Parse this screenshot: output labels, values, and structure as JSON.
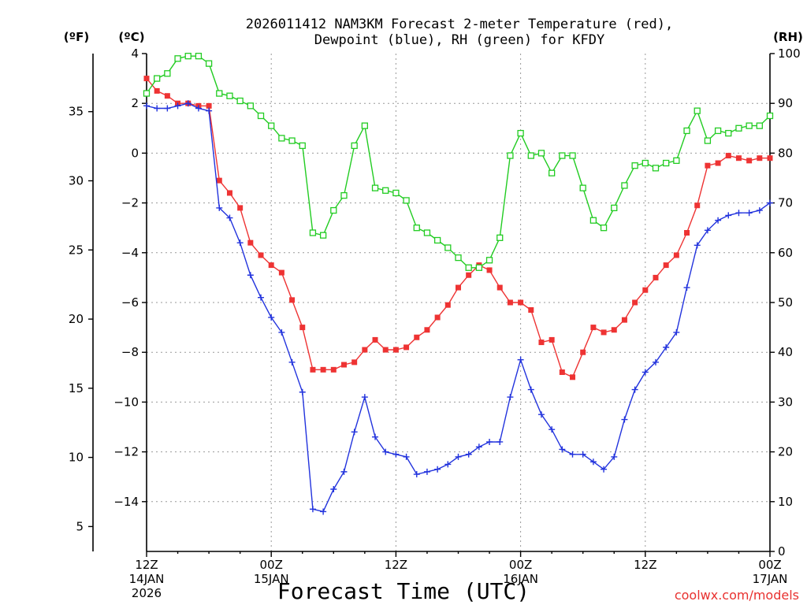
{
  "chart_data": {
    "type": "line",
    "title_line1": "2026011412 NAM3KM Forecast 2-meter Temperature (red),",
    "title_line2": "Dewpoint (blue), RH (green) for KFDY",
    "xlabel": "Forecast Time (UTC)",
    "credit": "coolwx.com/models",
    "units": {
      "fahrenheit": "(ºF)",
      "celsius": "(ºC)",
      "rh": "(RH)"
    },
    "xlim_hours": [
      0,
      60
    ],
    "celsius_lim": [
      -16.0,
      4.0
    ],
    "rh_lim": [
      0,
      100
    ],
    "fahrenheit_ticks": [
      "5",
      "10",
      "15",
      "20",
      "25",
      "30",
      "35"
    ],
    "celsius_ticks": [
      "−14",
      "−12",
      "−10",
      "−8",
      "−6",
      "−4",
      "−2",
      "0",
      "2",
      "4"
    ],
    "rh_ticks": [
      "0",
      "10",
      "20",
      "30",
      "40",
      "50",
      "60",
      "70",
      "80",
      "90",
      "100"
    ],
    "x_ticks": [
      {
        "hour": 0,
        "l1": "12Z",
        "l2": "14JAN",
        "l3": "2026"
      },
      {
        "hour": 12,
        "l1": "00Z",
        "l2": "15JAN",
        "l3": ""
      },
      {
        "hour": 24,
        "l1": "12Z",
        "l2": "",
        "l3": ""
      },
      {
        "hour": 36,
        "l1": "00Z",
        "l2": "16JAN",
        "l3": ""
      },
      {
        "hour": 48,
        "l1": "12Z",
        "l2": "",
        "l3": ""
      },
      {
        "hour": 60,
        "l1": "00Z",
        "l2": "17JAN",
        "l3": ""
      }
    ],
    "series": [
      {
        "name": "Temperature",
        "unit": "°C",
        "color": "#ee3333",
        "marker": "filled-square",
        "x": [
          0,
          1,
          2,
          3,
          4,
          5,
          6,
          7,
          8,
          9,
          10,
          11,
          12,
          13,
          14,
          15,
          16,
          17,
          18,
          19,
          20,
          21,
          22,
          23,
          24,
          25,
          26,
          27,
          28,
          29,
          30,
          31,
          32,
          33,
          34,
          35,
          36,
          37,
          38,
          39,
          40,
          41,
          42,
          43,
          44,
          45,
          46,
          47,
          48,
          49,
          50,
          51,
          52,
          53,
          54,
          55,
          56,
          57,
          58,
          59,
          60
        ],
        "values": [
          3.0,
          2.5,
          2.3,
          2.0,
          2.0,
          1.9,
          1.9,
          -1.1,
          -1.6,
          -2.2,
          -3.6,
          -4.1,
          -4.5,
          -4.8,
          -5.9,
          -7.0,
          -8.7,
          -8.7,
          -8.7,
          -8.5,
          -8.4,
          -7.9,
          -7.5,
          -7.9,
          -7.9,
          -7.8,
          -7.4,
          -7.1,
          -6.6,
          -6.1,
          -5.4,
          -4.9,
          -4.5,
          -4.7,
          -5.4,
          -6.0,
          -6.0,
          -6.3,
          -7.6,
          -7.5,
          -8.8,
          -9.0,
          -8.0,
          -7.0,
          -7.2,
          -7.1,
          -6.7,
          -6.0,
          -5.5,
          -5.0,
          -4.5,
          -4.1,
          -3.2,
          -2.1,
          -0.5,
          -0.4,
          -0.1,
          -0.2,
          -0.3,
          -0.2,
          -0.2
        ]
      },
      {
        "name": "Dewpoint",
        "unit": "°C",
        "color": "#2233dd",
        "marker": "plus",
        "x": [
          0,
          1,
          2,
          3,
          4,
          5,
          6,
          7,
          8,
          9,
          10,
          11,
          12,
          13,
          14,
          15,
          16,
          17,
          18,
          19,
          20,
          21,
          22,
          23,
          24,
          25,
          26,
          27,
          28,
          29,
          30,
          31,
          32,
          33,
          34,
          35,
          36,
          37,
          38,
          39,
          40,
          41,
          42,
          43,
          44,
          45,
          46,
          47,
          48,
          49,
          50,
          51,
          52,
          53,
          54,
          55,
          56,
          57,
          58,
          59,
          60
        ],
        "values": [
          1.9,
          1.8,
          1.8,
          1.9,
          2.0,
          1.8,
          1.7,
          -2.2,
          -2.6,
          -3.6,
          -4.9,
          -5.8,
          -6.6,
          -7.2,
          -8.4,
          -9.6,
          -14.3,
          -14.4,
          -13.5,
          -12.8,
          -11.2,
          -9.8,
          -11.4,
          -12.0,
          -12.1,
          -12.2,
          -12.9,
          -12.8,
          -12.7,
          -12.5,
          -12.2,
          -12.1,
          -11.8,
          -11.6,
          -11.6,
          -9.8,
          -8.3,
          -9.5,
          -10.5,
          -11.1,
          -11.9,
          -12.1,
          -12.1,
          -12.4,
          -12.7,
          -12.2,
          -10.7,
          -9.5,
          -8.8,
          -8.4,
          -7.8,
          -7.2,
          -5.4,
          -3.7,
          -3.1,
          -2.7,
          -2.5,
          -2.4,
          -2.4,
          -2.3,
          -2.0
        ]
      },
      {
        "name": "Relative Humidity",
        "unit": "%",
        "color": "#22cc22",
        "marker": "open-square",
        "x": [
          0,
          1,
          2,
          3,
          4,
          5,
          6,
          7,
          8,
          9,
          10,
          11,
          12,
          13,
          14,
          15,
          16,
          17,
          18,
          19,
          20,
          21,
          22,
          23,
          24,
          25,
          26,
          27,
          28,
          29,
          30,
          31,
          32,
          33,
          34,
          35,
          36,
          37,
          38,
          39,
          40,
          41,
          42,
          43,
          44,
          45,
          46,
          47,
          48,
          49,
          50,
          51,
          52,
          53,
          54,
          55,
          56,
          57,
          58,
          59,
          60
        ],
        "values": [
          92,
          95,
          96,
          99,
          99.5,
          99.5,
          98,
          92,
          91.5,
          90.5,
          89.5,
          87.5,
          85.5,
          83,
          82.5,
          81.5,
          64,
          63.5,
          68.5,
          71.5,
          81.5,
          85.5,
          73,
          72.5,
          72,
          70.5,
          65,
          64,
          62.5,
          61,
          59,
          57,
          57,
          58.5,
          63,
          79.5,
          84,
          79.5,
          80,
          76,
          79.5,
          79.5,
          73,
          66.5,
          65,
          69,
          73.5,
          77.5,
          78,
          77,
          78,
          78.5,
          84.5,
          88.5,
          82.5,
          84.5,
          84,
          85,
          85.5,
          85.5,
          87.5
        ]
      }
    ]
  }
}
